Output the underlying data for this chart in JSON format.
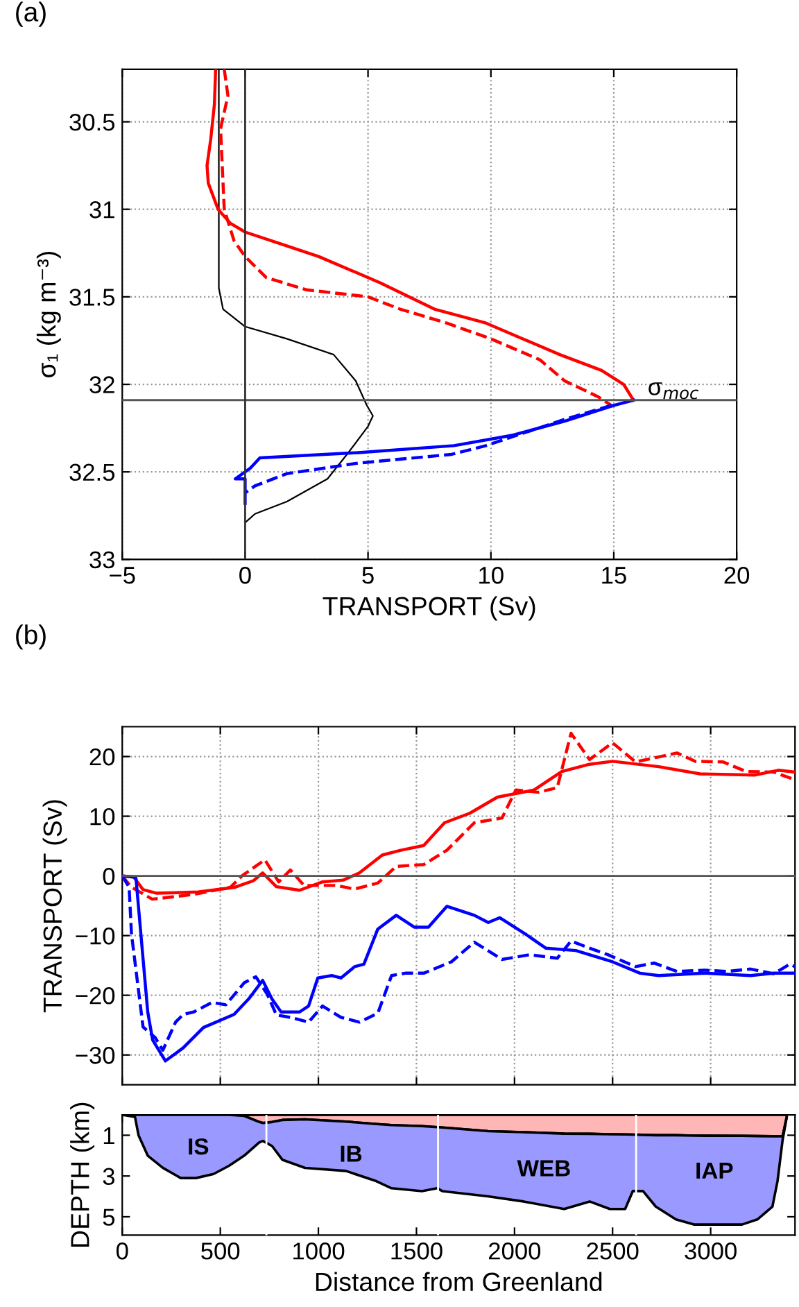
{
  "chart_data": [
    {
      "type": "line",
      "title": "(a)",
      "xlabel": "TRANSPORT (Sv)",
      "ylabel": "σ₁ (kg m⁻³)",
      "xlim": [
        -5,
        20
      ],
      "ylim": [
        33,
        30.2
      ],
      "xticks": [
        {
          "value": -5,
          "label": "−5"
        },
        0,
        5,
        10,
        15,
        20
      ],
      "yticks": [
        30.5,
        31,
        31.5,
        32,
        32.5,
        33
      ],
      "grid": true,
      "ref_lines": [
        {
          "axis": "y",
          "value": 32.09,
          "label": "σ$_{moc}$",
          "color": "#555555"
        },
        {
          "axis": "x",
          "value": 0,
          "color": "#333333"
        }
      ],
      "series": [
        {
          "color": "#000000",
          "line_style": "solid",
          "x": [
            -1.07,
            -1.07,
            -0.9,
            0,
            1.7,
            3.6,
            4.5,
            4.95,
            5.2,
            5.0,
            4.2,
            3.35,
            1.7,
            0.4,
            0
          ],
          "values": [
            30.2,
            31.45,
            31.57,
            31.67,
            31.74,
            31.83,
            31.98,
            32.12,
            32.18,
            32.24,
            32.39,
            32.54,
            32.67,
            32.74,
            32.79
          ]
        },
        {
          "color": "#ff0000",
          "line_style": "solid",
          "x": [
            -1.2,
            -1.25,
            -1.4,
            -1.55,
            -1.5,
            -1.1,
            -0.6,
            0,
            1.5,
            3,
            5.5,
            7.7,
            9.8,
            11.3,
            12.8,
            14.5,
            15.4,
            15.8
          ],
          "values": [
            30.2,
            30.4,
            30.6,
            30.75,
            30.85,
            31.0,
            31.08,
            31.13,
            31.2,
            31.27,
            31.42,
            31.57,
            31.65,
            31.74,
            31.83,
            31.92,
            32.0,
            32.09
          ]
        },
        {
          "color": "#ff0000",
          "line_style": "dashed",
          "x": [
            -0.85,
            -0.7,
            -1.0,
            -0.85,
            -0.45,
            0,
            0.86,
            2.5,
            5.0,
            6.3,
            8.2,
            10.0,
            12.0,
            13.0,
            14.35,
            14.9
          ],
          "values": [
            30.2,
            30.35,
            30.54,
            31.0,
            31.18,
            31.27,
            31.39,
            31.46,
            31.5,
            31.57,
            31.65,
            31.74,
            31.86,
            31.98,
            32.07,
            32.12
          ]
        },
        {
          "color": "#0000ff",
          "line_style": "solid",
          "x": [
            15.8,
            15.0,
            13.0,
            10.9,
            8.5,
            4.6,
            0.6,
            0.2,
            -0.4,
            0,
            0
          ],
          "values": [
            32.09,
            32.12,
            32.21,
            32.29,
            32.35,
            32.39,
            32.42,
            32.48,
            32.54,
            32.54,
            32.68
          ]
        },
        {
          "color": "#0000ff",
          "line_style": "dashed",
          "x": [
            14.9,
            13.0,
            9.8,
            8.4,
            4.6,
            1.7,
            0.4,
            0
          ],
          "values": [
            32.12,
            32.2,
            32.35,
            32.4,
            32.45,
            32.51,
            32.58,
            32.62
          ]
        }
      ]
    },
    {
      "type": "line",
      "title": "(b)",
      "ylabel": "TRANSPORT (Sv)",
      "xlim": [
        0,
        3430
      ],
      "ylim": [
        -35,
        25
      ],
      "xticks": [
        0,
        500,
        1000,
        1500,
        2000,
        2500,
        3000
      ],
      "yticks": [
        {
          "value": -30,
          "label": "−30"
        },
        {
          "value": -20,
          "label": "−20"
        },
        {
          "value": -10,
          "label": "−10"
        },
        0,
        10,
        20
      ],
      "grid": true,
      "tick_labels": "y",
      "ref_lines": [
        {
          "axis": "y",
          "value": 0,
          "color": "#555555"
        }
      ],
      "series": [
        {
          "color": "#ff0000",
          "line_style": "solid",
          "x": [
            0,
            59,
            106,
            176,
            387,
            575,
            669,
            716,
            786,
            904,
            1021,
            1127,
            1209,
            1326,
            1420,
            1537,
            1643,
            1772,
            1913,
            2100,
            2241,
            2382,
            2500,
            2735,
            2946,
            3227,
            3345,
            3430
          ],
          "values": [
            0,
            -0.2,
            -2.3,
            -2.9,
            -2.7,
            -1.9,
            -0.8,
            0.5,
            -1.8,
            -2.4,
            -1.0,
            -0.7,
            0.5,
            3.5,
            4.3,
            5.1,
            8.9,
            10.5,
            13.2,
            14.4,
            17.5,
            18.7,
            19.2,
            18.3,
            17.1,
            16.9,
            17.7,
            17.4
          ]
        },
        {
          "color": "#ff0000",
          "line_style": "dashed",
          "x": [
            0,
            47,
            153,
            364,
            552,
            610,
            727,
            798,
            857,
            927,
            1091,
            1185,
            1303,
            1397,
            1537,
            1655,
            1795,
            1936,
            2007,
            2124,
            2218,
            2288,
            2382,
            2500,
            2617,
            2828,
            2922,
            3063,
            3180,
            3321,
            3430
          ],
          "values": [
            0,
            -1.9,
            -3.9,
            -3.1,
            -1.9,
            0,
            2.7,
            -1.0,
            1.0,
            -1.6,
            -1.6,
            -2.2,
            -1.2,
            1.6,
            1.9,
            4.3,
            8.9,
            9.7,
            14.4,
            14.0,
            14.8,
            23.9,
            19.5,
            22.3,
            19.1,
            20.6,
            19.2,
            19.1,
            17.5,
            17.4,
            16.1
          ]
        },
        {
          "color": "#0000ff",
          "line_style": "solid",
          "x": [
            0,
            59,
            70,
            130,
            155,
            220,
            311,
            414,
            570,
            645,
            716,
            763,
            810,
            904,
            950,
            997,
            1068,
            1115,
            1185,
            1232,
            1303,
            1397,
            1490,
            1561,
            1655,
            1795,
            1866,
            1925,
            2054,
            2159,
            2312,
            2500,
            2640,
            2735,
            2969,
            3204,
            3321,
            3430
          ],
          "values": [
            0,
            -0.2,
            -0.4,
            -22.8,
            -27.5,
            -31,
            -28.8,
            -25.4,
            -23.2,
            -20.6,
            -17.5,
            -20.6,
            -22.8,
            -22.8,
            -21.8,
            -17.1,
            -16.7,
            -17.1,
            -15.2,
            -14.8,
            -8.9,
            -6.6,
            -8.6,
            -8.6,
            -5.1,
            -6.6,
            -7.8,
            -7.0,
            -9.7,
            -12.1,
            -12.5,
            -14.4,
            -16.3,
            -16.7,
            -16.3,
            -16.7,
            -16.3,
            -16.3
          ]
        },
        {
          "color": "#0000ff",
          "line_style": "dashed",
          "x": [
            0,
            35,
            47,
            106,
            168,
            207,
            272,
            311,
            364,
            458,
            528,
            622,
            681,
            739,
            786,
            857,
            950,
            1021,
            1115,
            1209,
            1303,
            1373,
            1443,
            1537,
            1678,
            1795,
            1936,
            2077,
            2218,
            2288,
            2382,
            2476,
            2617,
            2711,
            2828,
            2969,
            3086,
            3204,
            3321,
            3403,
            3430
          ],
          "values": [
            0,
            -1.9,
            -9.7,
            -25.3,
            -27.1,
            -29.2,
            -24.5,
            -23.2,
            -22.8,
            -21.2,
            -21.6,
            -17.9,
            -16.9,
            -19.8,
            -23.3,
            -23.7,
            -24.5,
            -21.8,
            -23.7,
            -24.5,
            -23.0,
            -16.7,
            -16.3,
            -16.3,
            -14.4,
            -11.1,
            -14.0,
            -13.2,
            -13.8,
            -10.9,
            -12.1,
            -13.2,
            -15.2,
            -14.6,
            -16.0,
            -15.8,
            -16.0,
            -15.6,
            -16.4,
            -14.8,
            -15.2
          ]
        }
      ]
    },
    {
      "type": "area",
      "stacked": true,
      "xlabel": "Distance from Greenland",
      "ylabel": "DEPTH (km)",
      "xlim": [
        0,
        3430
      ],
      "ylim": [
        5.9,
        0
      ],
      "xticks": [
        0,
        500,
        1000,
        1500,
        2000,
        2500,
        3000
      ],
      "yticks": [
        1,
        3,
        5
      ],
      "x": [
        0,
        65,
        83,
        130,
        207,
        298,
        376,
        466,
        544,
        622,
        699,
        717,
        764,
        816,
        932,
        1140,
        1295,
        1373,
        1528,
        1606,
        1632,
        1865,
        2046,
        2253,
        2383,
        2486,
        2564,
        2603,
        2655,
        2720,
        2823,
        2914,
        3160,
        3238,
        3315,
        3341,
        3367,
        3388
      ],
      "ref_lines": [
        {
          "axis": "x",
          "value": 735,
          "color": "#ffffff"
        },
        {
          "axis": "x",
          "value": 1610,
          "color": "#ffffff"
        },
        {
          "axis": "x",
          "value": 2620,
          "color": "#ffffff"
        }
      ],
      "annotations": [
        "IS",
        "IB",
        "WEB",
        "IAP"
      ],
      "series": [
        {
          "color": "#ffb6b6",
          "values": [
            0,
            0,
            0,
            0,
            0,
            0,
            0,
            0,
            0,
            0.05,
            0.35,
            0.4,
            0.35,
            0.25,
            0.22,
            0.33,
            0.45,
            0.5,
            0.55,
            0.6,
            0.62,
            0.8,
            0.85,
            0.92,
            0.93,
            0.95,
            0.96,
            0.97,
            0.98,
            1.0,
            1.0,
            1.02,
            1.03,
            1.04,
            1.05,
            1.05,
            1.05,
            0.1
          ]
        },
        {
          "color": "#9999ff",
          "values": [
            0,
            0.1,
            1.0,
            2.0,
            2.6,
            3.1,
            3.1,
            2.9,
            2.5,
            1.95,
            1.0,
            0.88,
            1.18,
            1.95,
            2.38,
            2.42,
            2.8,
            3.1,
            3.19,
            3.0,
            3.12,
            3.2,
            3.4,
            3.7,
            3.32,
            3.67,
            3.66,
            2.77,
            2.76,
            3.5,
            4.13,
            4.36,
            4.35,
            4.09,
            3.45,
            2.19,
            0.17,
            0
          ]
        }
      ]
    }
  ]
}
